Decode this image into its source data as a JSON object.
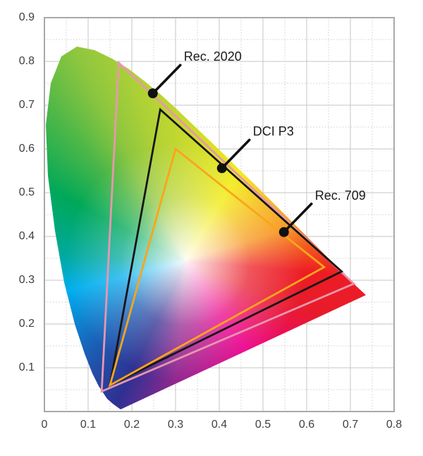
{
  "chart_data": {
    "type": "line",
    "subtype": "cie-1931-xy-chromaticity-gamut-comparison",
    "title": "",
    "xlabel": "",
    "ylabel": "",
    "xlim": [
      0,
      0.8
    ],
    "ylim": [
      0,
      0.9
    ],
    "x_ticks": [
      "0",
      "0.1",
      "0.2",
      "0.3",
      "0.4",
      "0.5",
      "0.6",
      "0.7",
      "0.8"
    ],
    "y_ticks": [
      "0.9",
      "0.8",
      "0.7",
      "0.6",
      "0.5",
      "0.4",
      "0.3",
      "0.2",
      "0.1"
    ],
    "grid": {
      "major_step": 0.1,
      "major_style": "solid",
      "minor_step": 0.05,
      "minor_style": "dotted",
      "color": "#c9c9c9"
    },
    "legend_position": "inline-callouts",
    "series": [
      {
        "name": "Rec. 2020",
        "color": "#E897AE",
        "closed": true,
        "points": [
          [
            0.708,
            0.292
          ],
          [
            0.17,
            0.797
          ],
          [
            0.131,
            0.046
          ]
        ]
      },
      {
        "name": "DCI P3",
        "color": "#161616",
        "closed": true,
        "points": [
          [
            0.68,
            0.32
          ],
          [
            0.265,
            0.69
          ],
          [
            0.15,
            0.06
          ]
        ]
      },
      {
        "name": "Rec. 709",
        "color": "#F9A51B",
        "closed": true,
        "points": [
          [
            0.64,
            0.33
          ],
          [
            0.3,
            0.6
          ],
          [
            0.15,
            0.06
          ]
        ]
      }
    ],
    "annotations": [
      {
        "label": "Rec. 2020",
        "anchor": [
          0.248,
          0.727
        ],
        "marker": "black-dot",
        "pointer": "black-line"
      },
      {
        "label": "DCI P3",
        "anchor": [
          0.406,
          0.556
        ],
        "marker": "black-dot",
        "pointer": "black-line"
      },
      {
        "label": "Rec. 709",
        "anchor": [
          0.548,
          0.41
        ],
        "marker": "black-dot",
        "pointer": "black-line"
      }
    ],
    "background": {
      "name": "spectral-locus-horseshoe",
      "white_point_xy": [
        0.318,
        0.344
      ],
      "edge_colors": {
        "top_green": "#8dc63f",
        "yellow": "#f2ea0c",
        "orange": "#f7941d",
        "red": "#ed1c24",
        "magenta": "#ec008c",
        "purple": "#92278f",
        "blue": "#2e3192",
        "cyan": "#00aeef"
      }
    }
  }
}
